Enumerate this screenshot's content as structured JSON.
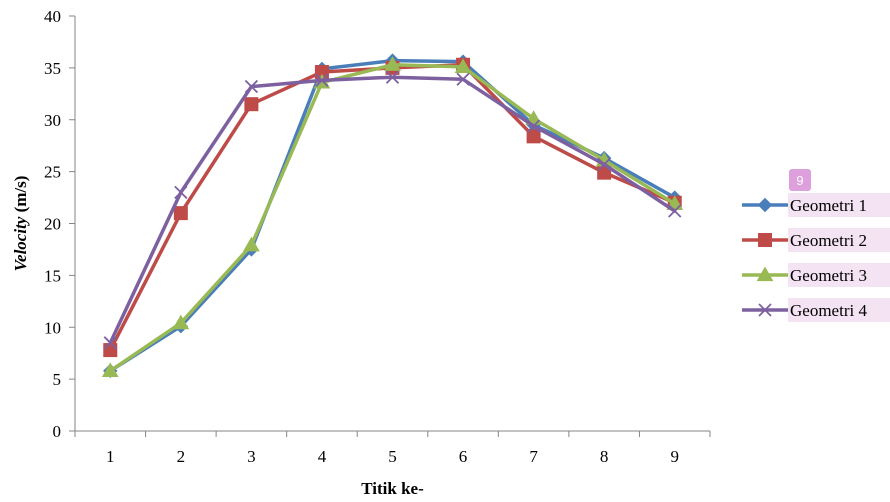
{
  "chart_data": {
    "type": "line",
    "title": "",
    "xlabel": "Titik ke-",
    "ylabel_italic": "Velocity",
    "ylabel_unit": " (m/s)",
    "x": [
      1,
      2,
      3,
      4,
      5,
      6,
      7,
      8,
      9
    ],
    "ylim": [
      0,
      40
    ],
    "yticks": [
      0,
      5,
      10,
      15,
      20,
      25,
      30,
      35,
      40
    ],
    "grid": false,
    "legend_position": "right",
    "series": [
      {
        "name": "Geometri 1",
        "color": "#4a7ebb",
        "marker": "diamond",
        "values": [
          5.8,
          10.1,
          17.5,
          34.9,
          35.7,
          35.6,
          29.5,
          26.3,
          22.5
        ]
      },
      {
        "name": "Geometri 2",
        "color": "#be4b48",
        "marker": "square",
        "values": [
          7.8,
          21.0,
          31.5,
          34.6,
          35.0,
          35.3,
          28.4,
          24.9,
          22.0
        ]
      },
      {
        "name": "Geometri 3",
        "color": "#98b954",
        "marker": "triangle",
        "values": [
          5.8,
          10.4,
          17.9,
          33.6,
          35.3,
          35.1,
          30.1,
          26.1,
          21.9
        ]
      },
      {
        "name": "Geometri 4",
        "color": "#7d60a0",
        "marker": "x",
        "values": [
          8.5,
          23.0,
          33.2,
          33.8,
          34.1,
          33.9,
          29.4,
          25.7,
          21.2
        ]
      }
    ]
  },
  "badge": {
    "text": "9",
    "color": "#dda0dd",
    "highlight_color": "#f3e3f3"
  }
}
